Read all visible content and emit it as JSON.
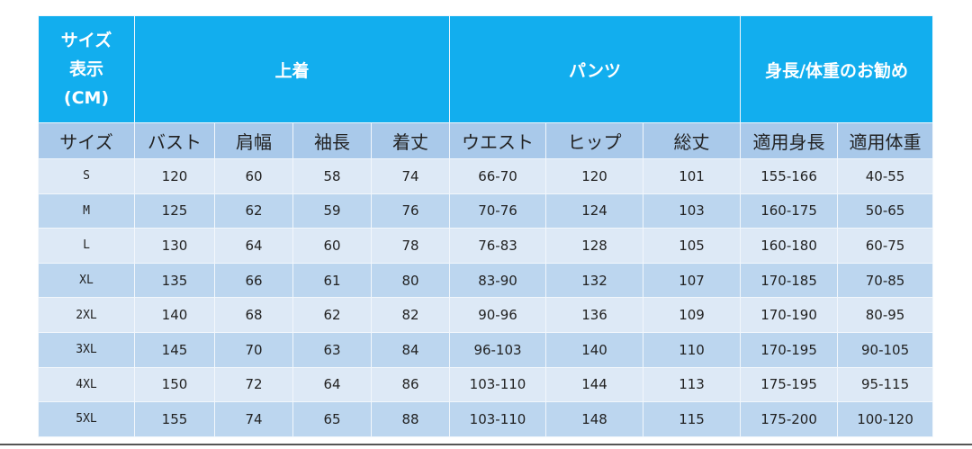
{
  "groups": {
    "size_label": [
      "サイズ",
      "表示",
      "(CM)"
    ],
    "top": "上着",
    "pants": "パンツ",
    "recommend": "身長/体重のお勧め"
  },
  "columns": [
    "サイズ",
    "バスト",
    "肩幅",
    "袖長",
    "着丈",
    "ウエスト",
    "ヒップ",
    "総丈",
    "適用身長",
    "適用体重"
  ],
  "rows": [
    [
      "S",
      "120",
      "60",
      "58",
      "74",
      "66-70",
      "120",
      "101",
      "155-166",
      "40-55"
    ],
    [
      "M",
      "125",
      "62",
      "59",
      "76",
      "70-76",
      "124",
      "103",
      "160-175",
      "50-65"
    ],
    [
      "L",
      "130",
      "64",
      "60",
      "78",
      "76-83",
      "128",
      "105",
      "160-180",
      "60-75"
    ],
    [
      "XL",
      "135",
      "66",
      "61",
      "80",
      "83-90",
      "132",
      "107",
      "170-185",
      "70-85"
    ],
    [
      "2XL",
      "140",
      "68",
      "62",
      "82",
      "90-96",
      "136",
      "109",
      "170-190",
      "80-95"
    ],
    [
      "3XL",
      "145",
      "70",
      "63",
      "84",
      "96-103",
      "140",
      "110",
      "170-195",
      "90-105"
    ],
    [
      "4XL",
      "150",
      "72",
      "64",
      "86",
      "103-110",
      "144",
      "113",
      "175-195",
      "95-115"
    ],
    [
      "5XL",
      "155",
      "74",
      "65",
      "88",
      "103-110",
      "148",
      "115",
      "175-200",
      "100-120"
    ]
  ],
  "colors": {
    "header": "#12aeee",
    "subheader": "#a9c9ea",
    "row_light": "#dde9f6",
    "row_dark": "#bcd6ef"
  }
}
